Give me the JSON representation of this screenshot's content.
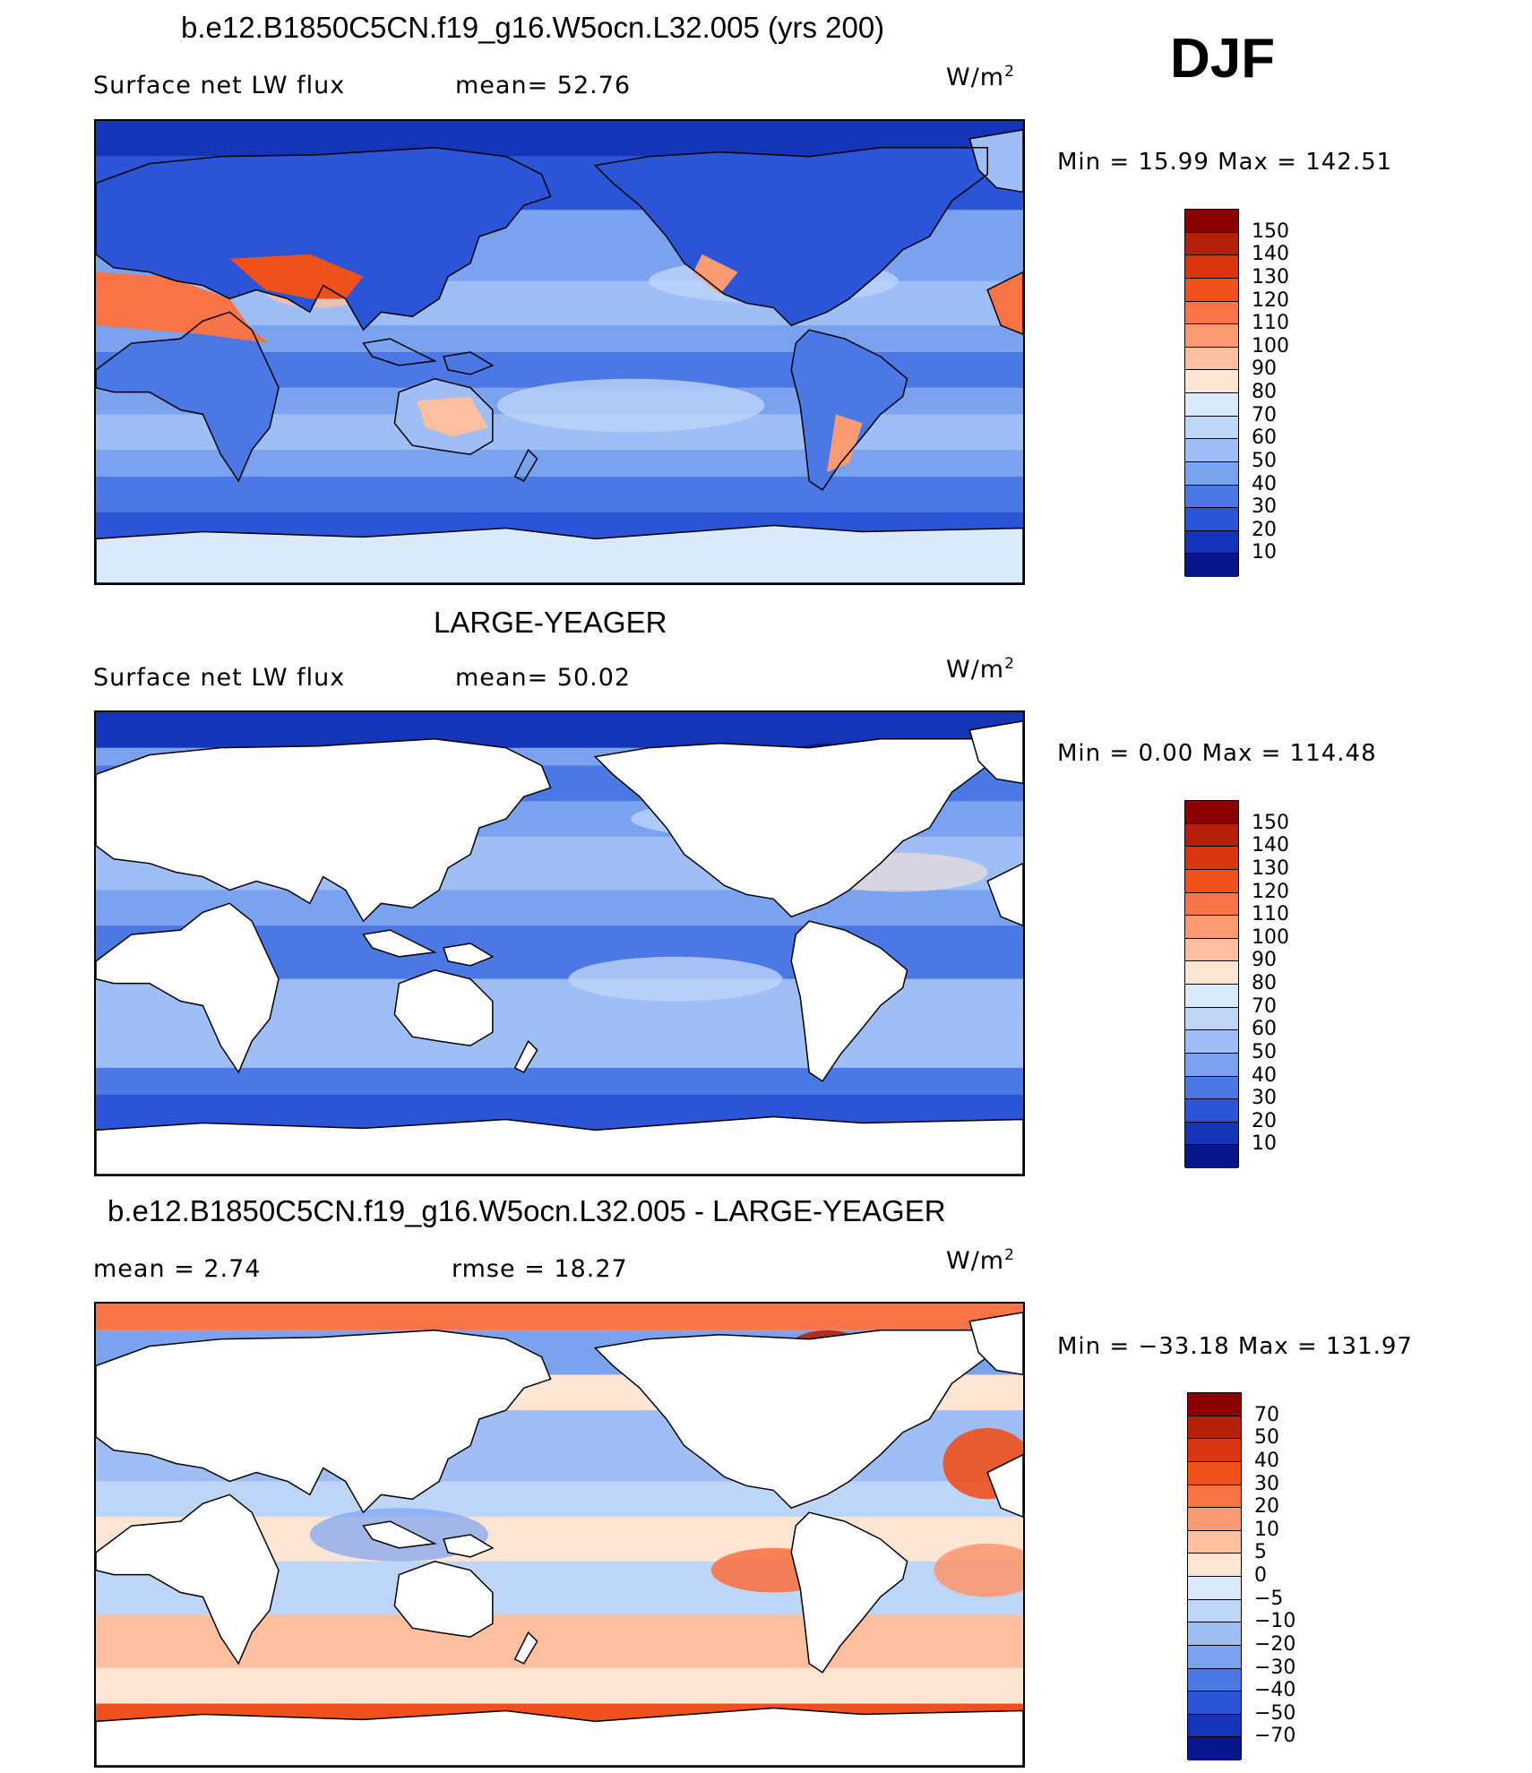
{
  "season": "DJF",
  "panels": [
    {
      "title": "b.e12.B1850C5CN.f19_g16.W5ocn.L32.005 (yrs 200)",
      "left_label": "Surface net LW flux",
      "mid_label": "mean=  52.76",
      "unit_base": "W/m",
      "unit_exp": "2",
      "minmax": "Min =   15.99 Max = 142.51",
      "colorbar": {
        "labels": [
          "150",
          "140",
          "130",
          "120",
          "110",
          "100",
          "90",
          "80",
          "70",
          "60",
          "50",
          "40",
          "30",
          "20",
          "10"
        ],
        "colors": [
          "#8b0000",
          "#b5200a",
          "#d9360f",
          "#f0501c",
          "#f87346",
          "#f99a72",
          "#fcbfa0",
          "#fde5d3",
          "#dbeafb",
          "#bdd5f7",
          "#9ebef5",
          "#7aa2ef",
          "#4c78e6",
          "#2b55d6",
          "#1435b8",
          "#08168c"
        ]
      },
      "map_style": "model"
    },
    {
      "title": "LARGE-YEAGER",
      "left_label": "Surface net LW flux",
      "mid_label": "mean=  50.02",
      "unit_base": "W/m",
      "unit_exp": "2",
      "minmax": "Min =    0.00 Max = 114.48",
      "colorbar": {
        "labels": [
          "150",
          "140",
          "130",
          "120",
          "110",
          "100",
          "90",
          "80",
          "70",
          "60",
          "50",
          "40",
          "30",
          "20",
          "10"
        ],
        "colors": [
          "#8b0000",
          "#b5200a",
          "#d9360f",
          "#f0501c",
          "#f87346",
          "#f99a72",
          "#fcbfa0",
          "#fde5d3",
          "#dbeafb",
          "#bdd5f7",
          "#9ebef5",
          "#7aa2ef",
          "#4c78e6",
          "#2b55d6",
          "#1435b8",
          "#08168c"
        ]
      },
      "map_style": "obs"
    },
    {
      "title": "b.e12.B1850C5CN.f19_g16.W5ocn.L32.005 - LARGE-YEAGER",
      "left_label": "mean =    2.74",
      "mid_label": "rmse =   18.27",
      "unit_base": "W/m",
      "unit_exp": "2",
      "minmax": "Min = −33.18 Max = 131.97",
      "colorbar": {
        "labels": [
          "70",
          "50",
          "40",
          "30",
          "20",
          "10",
          "5",
          "0",
          "−5",
          "−10",
          "−20",
          "−30",
          "−40",
          "−50",
          "−70"
        ],
        "colors": [
          "#8b0000",
          "#b5200a",
          "#d9360f",
          "#f0501c",
          "#f87346",
          "#f99a72",
          "#fcbfa0",
          "#fde5d3",
          "#dbeafb",
          "#bdd5f7",
          "#9ebef5",
          "#7aa2ef",
          "#4c78e6",
          "#2b55d6",
          "#1435b8",
          "#08168c"
        ]
      },
      "map_style": "diff"
    }
  ]
}
